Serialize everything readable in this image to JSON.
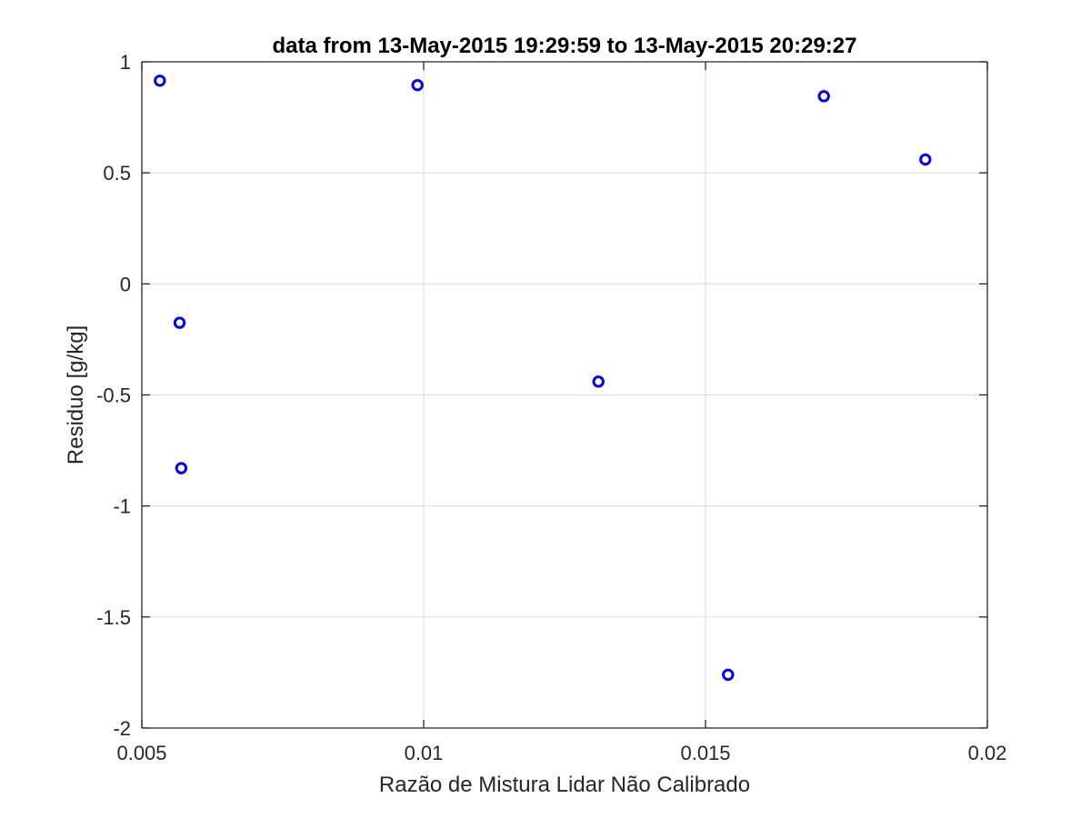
{
  "chart_data": {
    "type": "scatter",
    "title": "data from 13-May-2015 19:29:59 to 13-May-2015 20:29:27",
    "xlabel": "Razão de Mistura Lidar Não Calibrado",
    "ylabel": "Residuo [g/kg]",
    "xlim": [
      0.005,
      0.02
    ],
    "ylim": [
      -2,
      1
    ],
    "xticks": [
      0.005,
      0.01,
      0.015,
      0.02
    ],
    "xtick_labels": [
      "0.005",
      "0.01",
      "0.015",
      "0.02"
    ],
    "yticks": [
      -2,
      -1.5,
      -1,
      -0.5,
      0,
      0.5,
      1
    ],
    "ytick_labels": [
      "-2",
      "-1.5",
      "-1",
      "-0.5",
      "0",
      "0.5",
      "1"
    ],
    "grid": true,
    "marker": "circle-open",
    "series": [
      {
        "color": "#0000ff",
        "x": [
          0.00532,
          0.00567,
          0.0057,
          0.00989,
          0.0131,
          0.0154,
          0.0171,
          0.0189
        ],
        "y": [
          0.915,
          -0.175,
          -0.83,
          0.895,
          -0.44,
          -1.76,
          0.845,
          0.56
        ]
      }
    ]
  }
}
